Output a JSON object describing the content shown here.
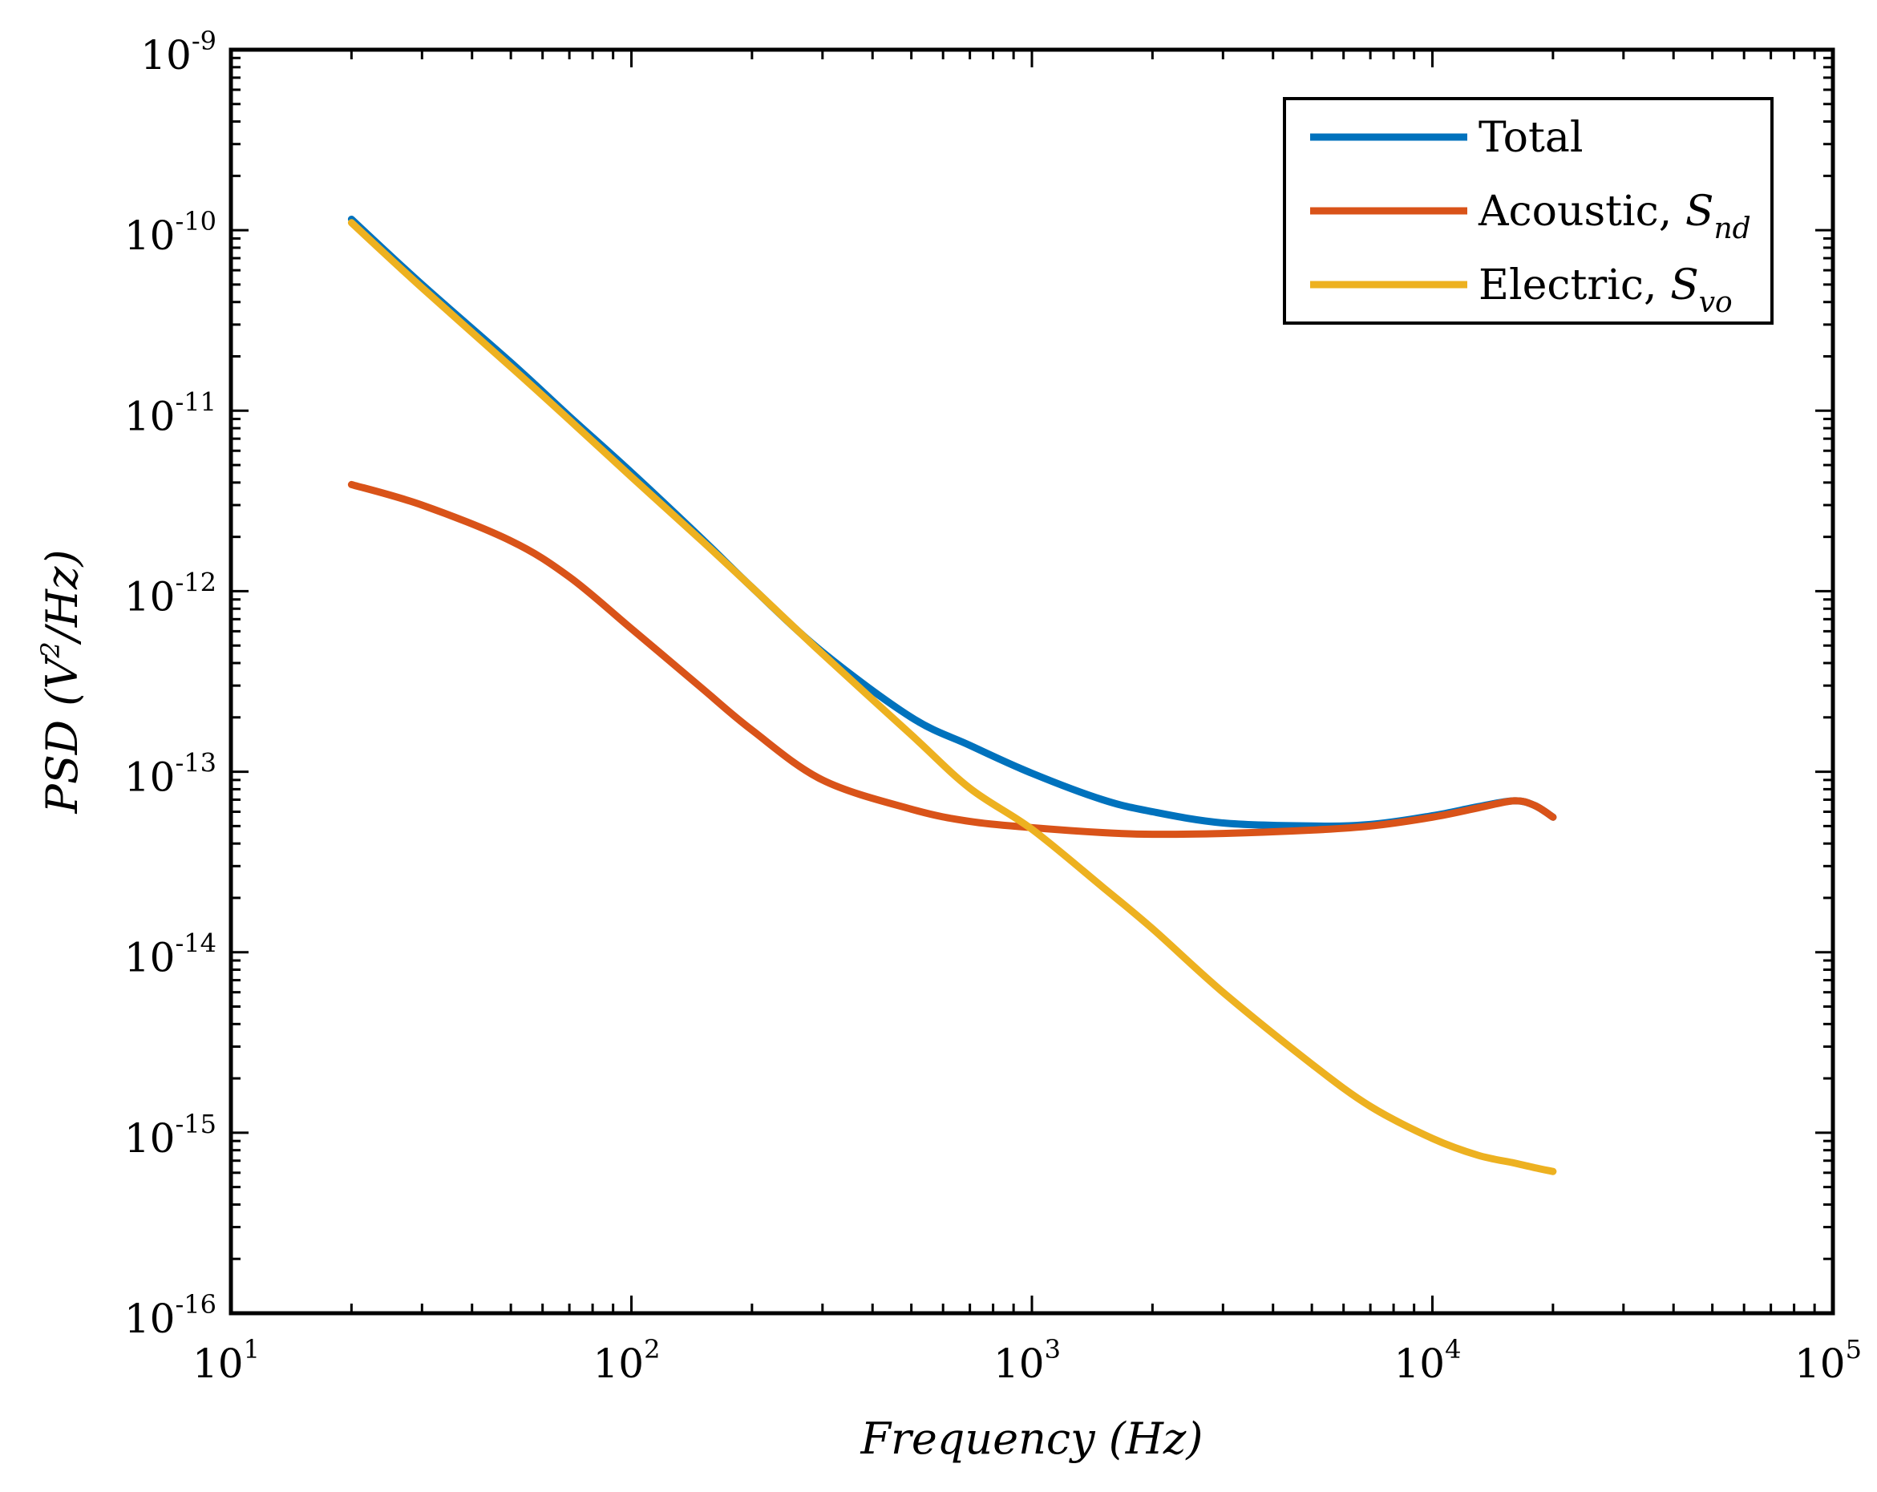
{
  "chart_data": {
    "type": "line",
    "title": "",
    "xlabel": "Frequency (Hz)",
    "ylabel": "PSD (V²/Hz)",
    "ylabel_parts": {
      "pre": "PSD (V",
      "sup": "2",
      "post": "/Hz)"
    },
    "xscale": "log",
    "yscale": "log",
    "xlim": [
      10,
      100000
    ],
    "ylim": [
      1e-16,
      1e-09
    ],
    "grid": false,
    "legend_position": "top-right",
    "x_ticks": [
      {
        "base": "10",
        "exp": "1"
      },
      {
        "base": "10",
        "exp": "2"
      },
      {
        "base": "10",
        "exp": "3"
      },
      {
        "base": "10",
        "exp": "4"
      },
      {
        "base": "10",
        "exp": "5"
      }
    ],
    "y_ticks": [
      {
        "base": "10",
        "exp": "-9"
      },
      {
        "base": "10",
        "exp": "-10"
      },
      {
        "base": "10",
        "exp": "-11"
      },
      {
        "base": "10",
        "exp": "-12"
      },
      {
        "base": "10",
        "exp": "-13"
      },
      {
        "base": "10",
        "exp": "-14"
      },
      {
        "base": "10",
        "exp": "-15"
      },
      {
        "base": "10",
        "exp": "-16"
      }
    ],
    "x": [
      20,
      30,
      50,
      70,
      100,
      150,
      200,
      300,
      500,
      700,
      1000,
      1500,
      2000,
      3000,
      5000,
      7000,
      10000,
      13000,
      16000,
      18000,
      20000
    ],
    "series": [
      {
        "name": "Total",
        "legend_label": "Total",
        "legend_sub": "",
        "color": "#0072BD",
        "values": [
          1.15e-10,
          5e-11,
          1.85e-11,
          9.3e-12,
          4.55e-12,
          1.95e-12,
          1.05e-12,
          4.6e-13,
          2e-13,
          1.4e-13,
          9.8e-14,
          7e-14,
          6e-14,
          5.2e-14,
          5e-14,
          5.1e-14,
          5.7e-14,
          6.4e-14,
          6.9e-14,
          6.5e-14,
          5.6e-14
        ]
      },
      {
        "name": "Acoustic, Snd",
        "legend_label": "Acoustic, S",
        "legend_sub": "nd",
        "color": "#D95319",
        "values": [
          3.9e-12,
          3e-12,
          1.9e-12,
          1.2e-12,
          6.2e-13,
          2.9e-13,
          1.7e-13,
          9e-14,
          6.2e-14,
          5.3e-14,
          4.9e-14,
          4.6e-14,
          4.5e-14,
          4.55e-14,
          4.75e-14,
          5e-14,
          5.6e-14,
          6.3e-14,
          6.9e-14,
          6.5e-14,
          5.6e-14
        ]
      },
      {
        "name": "Electric, Svo",
        "legend_label": "Electric, S",
        "legend_sub": "vo",
        "color": "#EDB120",
        "values": [
          1.1e-10,
          4.8e-11,
          1.75e-11,
          8.9e-12,
          4.3e-12,
          1.9e-12,
          1.05e-12,
          4.5e-13,
          1.6e-13,
          8.1e-14,
          4.8e-14,
          2.3e-14,
          1.35e-14,
          6e-15,
          2.4e-15,
          1.4e-15,
          9.3e-16,
          7.5e-16,
          6.8e-16,
          6.4e-16,
          6.1e-16
        ]
      }
    ]
  }
}
